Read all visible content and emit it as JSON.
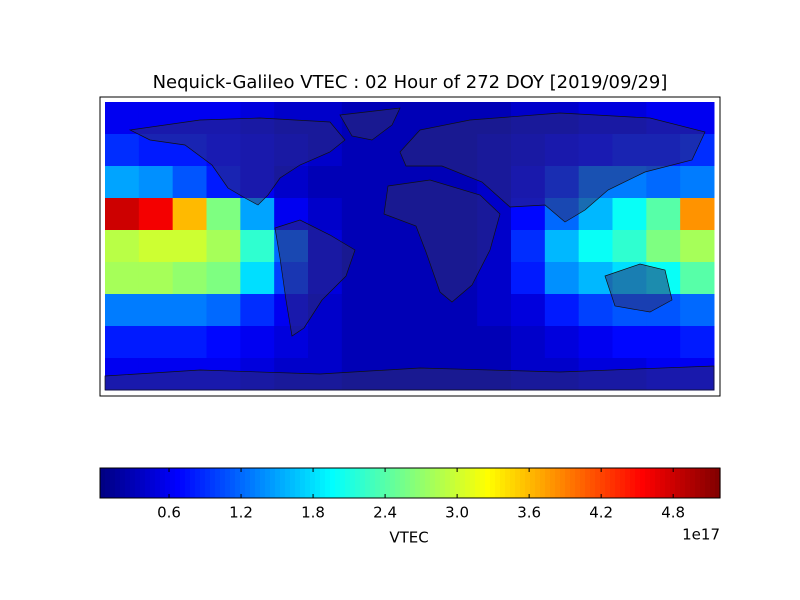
{
  "chart_data": {
    "type": "heatmap",
    "title": "Nequick-Galileo VTEC : 02 Hour of 272 DOY [2019/09/29]",
    "colormap": "jet",
    "xlim": [
      -180,
      180
    ],
    "ylim": [
      -90,
      90
    ],
    "z": [
      [
        0.6,
        0.6,
        0.6,
        0.6,
        0.5,
        0.4,
        0.4,
        0.3,
        0.3,
        0.3,
        0.3,
        0.3,
        0.4,
        0.4,
        0.5,
        0.5,
        0.6,
        0.6
      ],
      [
        0.9,
        0.8,
        0.8,
        0.7,
        0.6,
        0.5,
        0.4,
        0.3,
        0.3,
        0.3,
        0.3,
        0.4,
        0.5,
        0.6,
        0.7,
        0.8,
        0.8,
        0.9
      ],
      [
        1.5,
        1.4,
        1.1,
        0.8,
        0.6,
        0.4,
        0.3,
        0.3,
        0.3,
        0.3,
        0.3,
        0.4,
        0.6,
        0.9,
        1.3,
        1.3,
        1.2,
        1.3
      ],
      [
        4.8,
        4.6,
        3.6,
        2.6,
        1.5,
        0.6,
        0.4,
        0.3,
        0.3,
        0.3,
        0.3,
        0.4,
        0.7,
        1.2,
        1.6,
        2.0,
        2.4,
        3.8
      ],
      [
        2.9,
        3.0,
        3.0,
        2.8,
        2.2,
        1.2,
        0.5,
        0.3,
        0.3,
        0.3,
        0.3,
        0.4,
        0.9,
        1.6,
        2.0,
        2.2,
        2.6,
        2.8
      ],
      [
        2.8,
        2.8,
        2.7,
        2.6,
        1.8,
        1.0,
        0.5,
        0.3,
        0.3,
        0.3,
        0.3,
        0.4,
        0.8,
        1.4,
        1.6,
        1.8,
        2.0,
        2.4
      ],
      [
        1.3,
        1.3,
        1.3,
        1.2,
        0.9,
        0.6,
        0.4,
        0.3,
        0.3,
        0.3,
        0.3,
        0.4,
        0.5,
        0.8,
        1.0,
        1.1,
        1.1,
        1.2
      ],
      [
        0.8,
        0.8,
        0.8,
        0.7,
        0.6,
        0.5,
        0.4,
        0.3,
        0.3,
        0.3,
        0.3,
        0.3,
        0.4,
        0.5,
        0.6,
        0.7,
        0.7,
        0.8
      ],
      [
        0.6,
        0.6,
        0.6,
        0.6,
        0.5,
        0.4,
        0.4,
        0.3,
        0.3,
        0.3,
        0.3,
        0.3,
        0.4,
        0.4,
        0.5,
        0.5,
        0.6,
        0.6
      ]
    ],
    "clim": [
      0.025,
      5.19
    ],
    "colorbar_ticks": [
      0.6,
      1.2,
      1.8,
      2.4,
      {
        "value": 3,
        "label": "3.0"
      },
      3.6,
      4.2,
      4.8
    ],
    "colorbar_label": "VTEC",
    "colorbar_offset": "1e17"
  }
}
